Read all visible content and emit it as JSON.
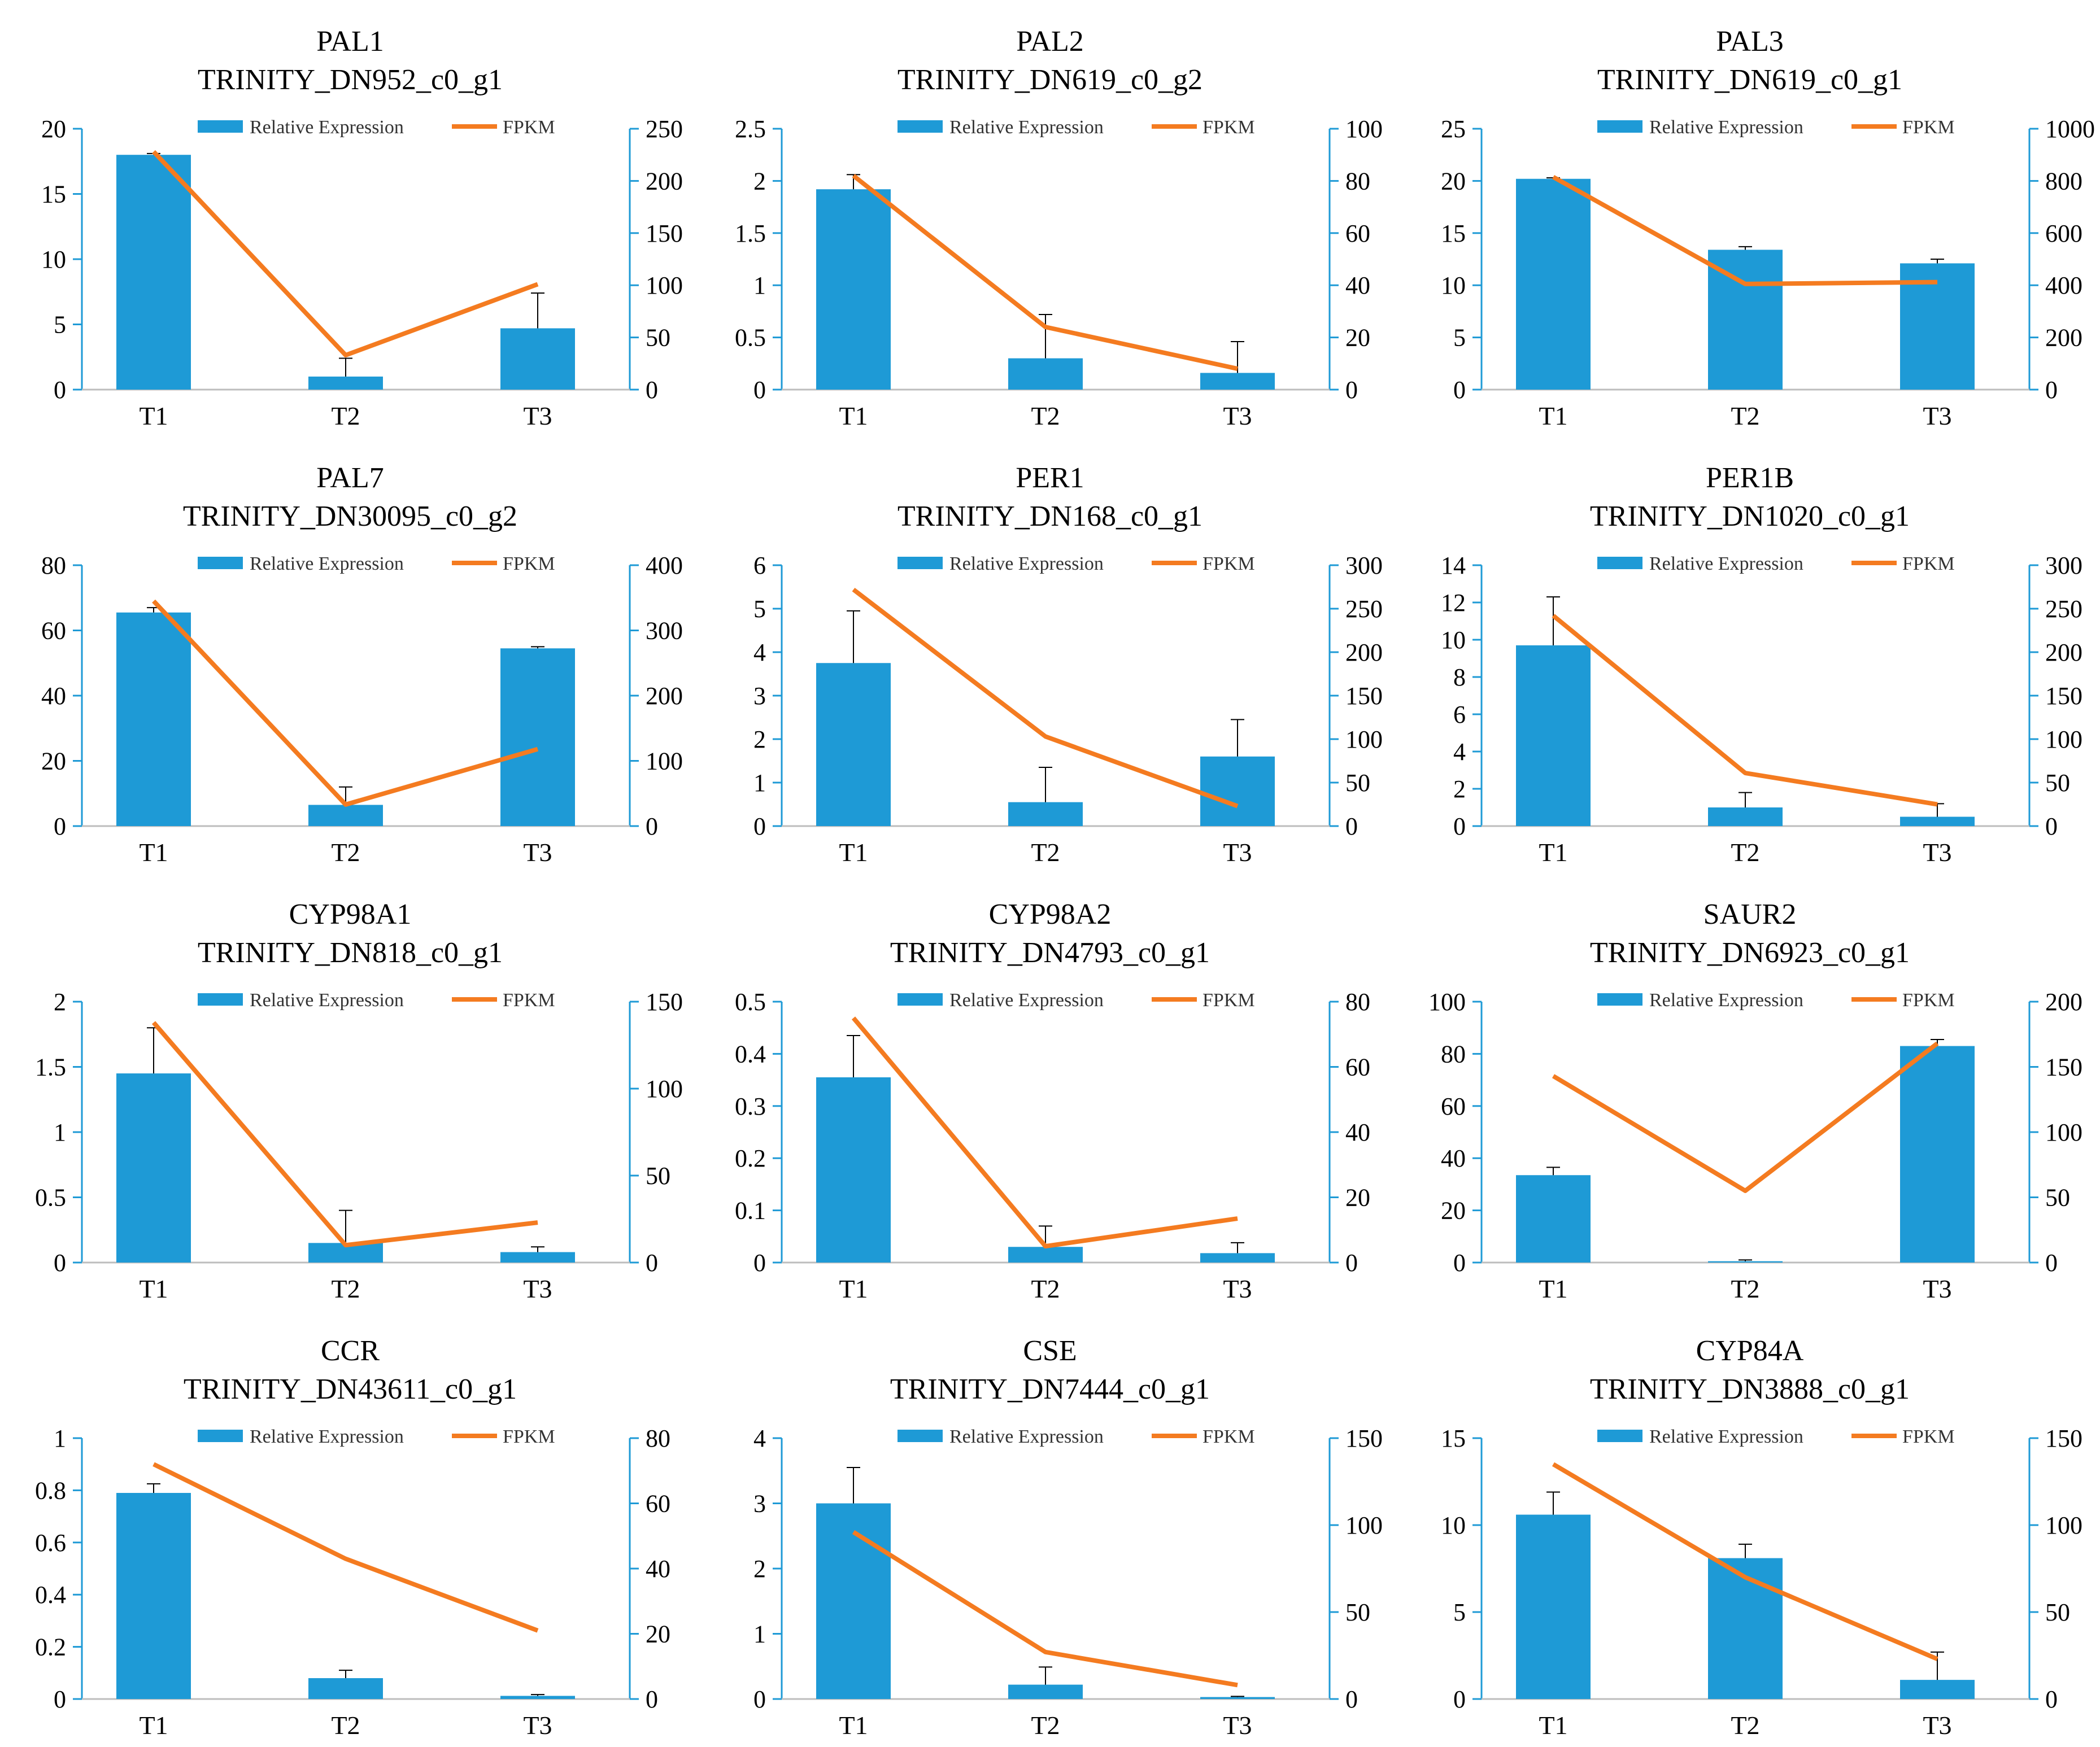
{
  "colors": {
    "bar": "#1e9ad6",
    "line": "#f47b20",
    "axis": "#1e9ad6",
    "error": "#000000"
  },
  "legend": {
    "bar": "Relative Expression",
    "line": "FPKM",
    "position": "top-center"
  },
  "chart_data": [
    {
      "type": "bar",
      "gene": "PAL1",
      "id": "TRINITY_DN952_c0_g1",
      "categories": [
        "T1",
        "T2",
        "T3"
      ],
      "series": [
        {
          "name": "Relative Expression",
          "values": [
            18,
            1,
            4.7
          ],
          "errors": [
            0.1,
            1.4,
            2.7
          ]
        },
        {
          "name": "FPKM",
          "values": [
            228,
            33,
            101
          ]
        }
      ],
      "yleft": {
        "range": [
          0,
          20
        ],
        "ticks": [
          "0",
          "5",
          "10",
          "15",
          "20"
        ]
      },
      "yright": {
        "range": [
          0,
          250
        ],
        "ticks": [
          "0",
          "50",
          "100",
          "150",
          "200",
          "250"
        ]
      }
    },
    {
      "type": "bar",
      "gene": "PAL2",
      "id": "TRINITY_DN619_c0_g2",
      "categories": [
        "T1",
        "T2",
        "T3"
      ],
      "series": [
        {
          "name": "Relative Expression",
          "values": [
            1.92,
            0.3,
            0.16
          ],
          "errors": [
            0.14,
            0.42,
            0.3
          ]
        },
        {
          "name": "FPKM",
          "values": [
            82,
            24,
            8
          ]
        }
      ],
      "yleft": {
        "range": [
          0,
          2.5
        ],
        "ticks": [
          "0",
          "0.5",
          "1",
          "1.5",
          "2",
          "2.5"
        ]
      },
      "yright": {
        "range": [
          0,
          100
        ],
        "ticks": [
          "0",
          "20",
          "40",
          "60",
          "80",
          "100"
        ]
      }
    },
    {
      "type": "bar",
      "gene": "PAL3",
      "id": "TRINITY_DN619_c0_g1",
      "categories": [
        "T1",
        "T2",
        "T3"
      ],
      "series": [
        {
          "name": "Relative Expression",
          "values": [
            20.2,
            13.4,
            12.1
          ],
          "errors": [
            0.1,
            0.3,
            0.4
          ]
        },
        {
          "name": "FPKM",
          "values": [
            815,
            405,
            412
          ]
        }
      ],
      "yleft": {
        "range": [
          0,
          25
        ],
        "ticks": [
          "0",
          "5",
          "10",
          "15",
          "20",
          "25"
        ]
      },
      "yright": {
        "range": [
          0,
          1000
        ],
        "ticks": [
          "0",
          "200",
          "400",
          "600",
          "800",
          "1000"
        ]
      }
    },
    {
      "type": "bar",
      "gene": "PAL7",
      "id": "TRINITY_DN30095_c0_g2",
      "categories": [
        "T1",
        "T2",
        "T3"
      ],
      "series": [
        {
          "name": "Relative Expression",
          "values": [
            65.5,
            6.5,
            54.5
          ],
          "errors": [
            1.5,
            5.5,
            0.5
          ]
        },
        {
          "name": "FPKM",
          "values": [
            345,
            33,
            118
          ]
        }
      ],
      "yleft": {
        "range": [
          0,
          80
        ],
        "ticks": [
          "0",
          "20",
          "40",
          "60",
          "80"
        ]
      },
      "yright": {
        "range": [
          0,
          400
        ],
        "ticks": [
          "0",
          "100",
          "200",
          "300",
          "400"
        ]
      }
    },
    {
      "type": "bar",
      "gene": "PER1",
      "id": "TRINITY_DN168_c0_g1",
      "categories": [
        "T1",
        "T2",
        "T3"
      ],
      "series": [
        {
          "name": "Relative Expression",
          "values": [
            3.75,
            0.55,
            1.6
          ],
          "errors": [
            1.2,
            0.8,
            0.85
          ]
        },
        {
          "name": "FPKM",
          "values": [
            272,
            103,
            23
          ]
        }
      ],
      "yleft": {
        "range": [
          0,
          6
        ],
        "ticks": [
          "0",
          "1",
          "2",
          "3",
          "4",
          "5",
          "6"
        ]
      },
      "yright": {
        "range": [
          0,
          300
        ],
        "ticks": [
          "0",
          "50",
          "100",
          "150",
          "200",
          "250",
          "300"
        ]
      }
    },
    {
      "type": "bar",
      "gene": "PER1B",
      "id": "TRINITY_DN1020_c0_g1",
      "categories": [
        "T1",
        "T2",
        "T3"
      ],
      "series": [
        {
          "name": "Relative Expression",
          "values": [
            9.7,
            1.0,
            0.5
          ],
          "errors": [
            2.6,
            0.8,
            0.7
          ]
        },
        {
          "name": "FPKM",
          "values": [
            242,
            61,
            25
          ]
        }
      ],
      "yleft": {
        "range": [
          0,
          14
        ],
        "ticks": [
          "0",
          "2",
          "4",
          "6",
          "8",
          "10",
          "12",
          "14"
        ]
      },
      "yright": {
        "range": [
          0,
          300
        ],
        "ticks": [
          "0",
          "50",
          "100",
          "150",
          "200",
          "250",
          "300"
        ]
      }
    },
    {
      "type": "bar",
      "gene": "CYP98A1",
      "id": "TRINITY_DN818_c0_g1",
      "categories": [
        "T1",
        "T2",
        "T3"
      ],
      "series": [
        {
          "name": "Relative Expression",
          "values": [
            1.45,
            0.15,
            0.08
          ],
          "errors": [
            0.35,
            0.25,
            0.04
          ]
        },
        {
          "name": "FPKM",
          "values": [
            138,
            10,
            23
          ]
        }
      ],
      "yleft": {
        "range": [
          0,
          2
        ],
        "ticks": [
          "0",
          "0.5",
          "1",
          "1.5",
          "2"
        ]
      },
      "yright": {
        "range": [
          0,
          150
        ],
        "ticks": [
          "0",
          "50",
          "100",
          "150"
        ]
      }
    },
    {
      "type": "bar",
      "gene": "CYP98A2",
      "id": "TRINITY_DN4793_c0_g1",
      "categories": [
        "T1",
        "T2",
        "T3"
      ],
      "series": [
        {
          "name": "Relative Expression",
          "values": [
            0.355,
            0.03,
            0.018
          ],
          "errors": [
            0.08,
            0.04,
            0.02
          ]
        },
        {
          "name": "FPKM",
          "values": [
            75,
            5,
            13.5
          ]
        }
      ],
      "yleft": {
        "range": [
          0,
          0.5
        ],
        "ticks": [
          "0",
          "0.1",
          "0.2",
          "0.3",
          "0.4",
          "0.5"
        ]
      },
      "yright": {
        "range": [
          0,
          80
        ],
        "ticks": [
          "0",
          "20",
          "40",
          "60",
          "80"
        ]
      }
    },
    {
      "type": "bar",
      "gene": "SAUR2",
      "id": "TRINITY_DN6923_c0_g1",
      "categories": [
        "T1",
        "T2",
        "T3"
      ],
      "series": [
        {
          "name": "Relative Expression",
          "values": [
            33.5,
            0.5,
            83
          ],
          "errors": [
            3,
            0.5,
            2.5
          ]
        },
        {
          "name": "FPKM",
          "values": [
            143,
            55,
            168
          ]
        }
      ],
      "yleft": {
        "range": [
          0,
          100
        ],
        "ticks": [
          "0",
          "20",
          "40",
          "60",
          "80",
          "100"
        ]
      },
      "yright": {
        "range": [
          0,
          200
        ],
        "ticks": [
          "0",
          "50",
          "100",
          "150",
          "200"
        ]
      }
    },
    {
      "type": "bar",
      "gene": "CCR",
      "id": "TRINITY_DN43611_c0_g1",
      "categories": [
        "T1",
        "T2",
        "T3"
      ],
      "series": [
        {
          "name": "Relative Expression",
          "values": [
            0.79,
            0.08,
            0.012
          ],
          "errors": [
            0.035,
            0.03,
            0.005
          ]
        },
        {
          "name": "FPKM",
          "values": [
            72,
            43,
            21
          ]
        }
      ],
      "yleft": {
        "range": [
          0,
          1
        ],
        "ticks": [
          "0",
          "0.2",
          "0.4",
          "0.6",
          "0.8",
          "1"
        ]
      },
      "yright": {
        "range": [
          0,
          80
        ],
        "ticks": [
          "0",
          "20",
          "40",
          "60",
          "80"
        ]
      }
    },
    {
      "type": "bar",
      "gene": "CSE",
      "id": "TRINITY_DN7444_c0_g1",
      "categories": [
        "T1",
        "T2",
        "T3"
      ],
      "series": [
        {
          "name": "Relative Expression",
          "values": [
            3.0,
            0.22,
            0.03
          ],
          "errors": [
            0.55,
            0.27,
            0.01
          ]
        },
        {
          "name": "FPKM",
          "values": [
            96,
            27,
            8
          ]
        }
      ],
      "yleft": {
        "range": [
          0,
          4
        ],
        "ticks": [
          "0",
          "1",
          "2",
          "3",
          "4"
        ]
      },
      "yright": {
        "range": [
          0,
          150
        ],
        "ticks": [
          "0",
          "50",
          "100",
          "150"
        ]
      }
    },
    {
      "type": "bar",
      "gene": "CYP84A",
      "id": "TRINITY_DN3888_c0_g1",
      "categories": [
        "T1",
        "T2",
        "T3"
      ],
      "series": [
        {
          "name": "Relative Expression",
          "values": [
            10.6,
            8.1,
            1.1
          ],
          "errors": [
            1.3,
            0.8,
            1.6
          ]
        },
        {
          "name": "FPKM",
          "values": [
            135,
            70,
            23
          ]
        }
      ],
      "yleft": {
        "range": [
          0,
          15
        ],
        "ticks": [
          "0",
          "5",
          "10",
          "15"
        ]
      },
      "yright": {
        "range": [
          0,
          150
        ],
        "ticks": [
          "0",
          "50",
          "100",
          "150"
        ]
      }
    }
  ]
}
